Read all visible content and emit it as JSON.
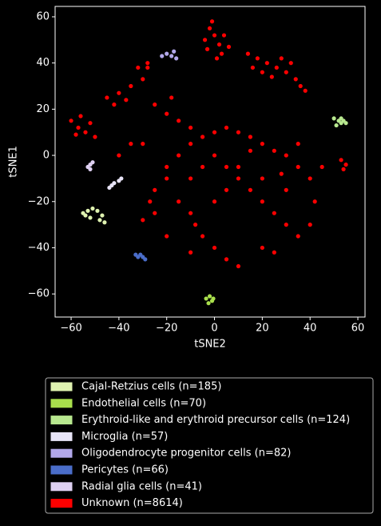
{
  "chart_data": {
    "type": "scatter",
    "x_label": "tSNE2",
    "y_label": "tSNE1",
    "xlim": [
      -66.7,
      63
    ],
    "ylim": [
      -70,
      64.5
    ],
    "xticks": [
      {
        "value": -60,
        "label": "−60"
      },
      {
        "value": -40,
        "label": "−40"
      },
      {
        "value": -20,
        "label": "−20"
      },
      0,
      20,
      40,
      60
    ],
    "yticks": [
      {
        "value": -60,
        "label": "−60"
      },
      {
        "value": -40,
        "label": "−40"
      },
      {
        "value": -20,
        "label": "−20"
      },
      0,
      20,
      40,
      60
    ],
    "legend": "below",
    "series": [
      {
        "name": "Cajal-Retzius cells (n=185)",
        "color": "#dff2b0",
        "x": [
          -55,
          -53,
          -51,
          -49,
          -47,
          -52,
          -48,
          -54,
          -46
        ],
        "values": [
          -25,
          -24,
          -23,
          -24,
          -26,
          -27,
          -28,
          -26,
          -29
        ]
      },
      {
        "name": "Endothelial cells (n=70)",
        "color": "#a9df4c",
        "x": [
          -3.5,
          -2,
          -1,
          -2.5,
          -0.5
        ],
        "values": [
          -62,
          -61,
          -63,
          -64,
          -62
        ]
      },
      {
        "name": "Erythroid-like and erythroid precursor cells (n=124)",
        "color": "#b8e88f",
        "x": [
          50,
          52,
          53,
          54,
          55,
          51,
          53
        ],
        "values": [
          16,
          15,
          14,
          15,
          14,
          13,
          16
        ]
      },
      {
        "name": "Microglia (n=57)",
        "color": "#e8e4f7",
        "x": [
          -44,
          -43,
          -42,
          -40,
          -39
        ],
        "values": [
          -14,
          -13,
          -12,
          -11,
          -10
        ]
      },
      {
        "name": "Oligodendrocyte progenitor cells (n=82)",
        "color": "#b2a8ea",
        "x": [
          -20,
          -18,
          -17,
          -16,
          -22
        ],
        "values": [
          44,
          43,
          45,
          42,
          43
        ]
      },
      {
        "name": "Pericytes (n=66)",
        "color": "#4a6dc9",
        "x": [
          -33,
          -32,
          -31,
          -30,
          -29
        ],
        "values": [
          -43,
          -44,
          -43,
          -44,
          -45
        ]
      },
      {
        "name": "Radial glia cells (n=41)",
        "color": "#ded0f2",
        "x": [
          -53,
          -52,
          -51,
          -52
        ],
        "values": [
          -5,
          -4,
          -3,
          -6
        ]
      },
      {
        "name": "Unknown (n=8614)",
        "color": "#ff0000",
        "x": [
          -2,
          0,
          2,
          -3,
          3,
          -1,
          4,
          6,
          -4,
          1,
          14,
          18,
          22,
          26,
          30,
          34,
          20,
          28,
          24,
          32,
          36,
          38,
          16,
          -60,
          -57,
          -54,
          -50,
          -56,
          -52,
          -58,
          -45,
          -40,
          -35,
          -30,
          -28,
          -32,
          -37,
          -42,
          -25,
          -20,
          -15,
          -10,
          -18,
          -30,
          -35,
          -40,
          -28,
          -20,
          -15,
          -10,
          -5,
          0,
          5,
          10,
          15,
          20,
          25,
          30,
          35,
          40,
          -10,
          -5,
          0,
          5,
          10,
          15,
          20,
          25,
          30,
          35,
          40,
          -15,
          -10,
          0,
          5,
          10,
          20,
          30,
          -25,
          -5,
          0,
          -10,
          5,
          20,
          25,
          10,
          -20,
          15,
          35,
          28,
          -8,
          -20,
          45,
          42,
          53,
          55,
          54,
          -27,
          -30,
          -25
        ],
        "values": [
          55,
          52,
          48,
          46,
          44,
          58,
          52,
          47,
          50,
          42,
          44,
          42,
          40,
          38,
          36,
          33,
          36,
          42,
          34,
          40,
          30,
          28,
          38,
          15,
          12,
          10,
          8,
          17,
          14,
          9,
          25,
          27,
          30,
          33,
          40,
          38,
          24,
          22,
          22,
          18,
          15,
          12,
          25,
          5,
          5,
          0,
          38,
          -5,
          0,
          5,
          8,
          10,
          12,
          10,
          8,
          5,
          2,
          0,
          -5,
          -10,
          -10,
          -5,
          0,
          -5,
          -10,
          -15,
          -20,
          -25,
          -30,
          -35,
          -30,
          -20,
          -25,
          -20,
          -15,
          -5,
          -10,
          -15,
          -25,
          -35,
          -40,
          -42,
          -45,
          -40,
          -42,
          -48,
          -10,
          2,
          5,
          -8,
          -30,
          -35,
          -5,
          -20,
          -2,
          -4,
          -6,
          -20,
          -28,
          -15
        ]
      }
    ]
  }
}
